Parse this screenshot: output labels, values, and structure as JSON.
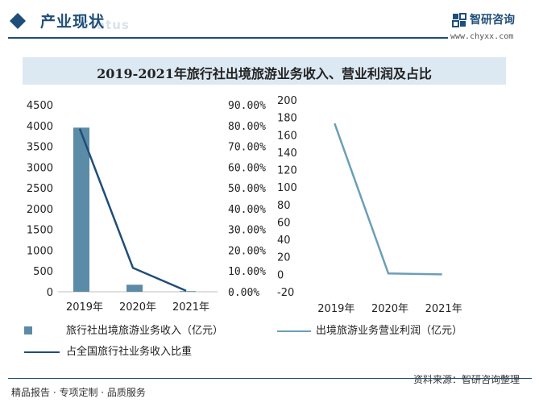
{
  "header": {
    "title": "产业现状",
    "watermark": "Status",
    "logo_name": "智研咨询",
    "logo_url": "www.chyxx.com"
  },
  "banner": {
    "title": "2019-2021年旅行社出境旅游业务收入、营业利润及占比"
  },
  "footer": {
    "left": "精品报告 · 专项定制 · 品质服务",
    "source": "资料来源：智研咨询整理"
  },
  "colors": {
    "bar": "#5b8ba6",
    "share_line": "#1f4e79",
    "profit_line": "#6a9fb8",
    "accent": "#1f4e79"
  },
  "chart_data": [
    {
      "type": "bar",
      "categories": [
        "2019年",
        "2020年",
        "2021年"
      ],
      "series": [
        {
          "name": "旅行社出境旅游业务收入（亿元）",
          "type": "bar",
          "axis": "left",
          "values": [
            3950,
            170,
            15
          ]
        },
        {
          "name": "占全国旅行社业务收入比重",
          "type": "line",
          "axis": "right",
          "values": [
            78.5,
            11.5,
            0.5
          ]
        }
      ],
      "y_left": {
        "ticks": [
          "0",
          "500",
          "1000",
          "1500",
          "2000",
          "2500",
          "3000",
          "3500",
          "4000",
          "4500"
        ],
        "ylim": [
          0,
          4500
        ]
      },
      "y_right": {
        "ticks": [
          "0.00%",
          "10.00%",
          "20.00%",
          "30.00%",
          "40.00%",
          "50.00%",
          "60.00%",
          "70.00%",
          "80.00%",
          "90.00%"
        ],
        "ylim": [
          0,
          90
        ]
      },
      "legend_position": "bottom"
    },
    {
      "type": "line",
      "categories": [
        "2019年",
        "2020年",
        "2021年"
      ],
      "series": [
        {
          "name": "出境旅游业务营业利润（亿元）",
          "values": [
            173,
            1,
            0
          ]
        }
      ],
      "y": {
        "ticks": [
          "-20",
          "0",
          "20",
          "40",
          "60",
          "80",
          "100",
          "120",
          "140",
          "160",
          "180",
          "200"
        ],
        "ylim": [
          -20,
          200
        ]
      },
      "legend_position": "bottom"
    }
  ]
}
